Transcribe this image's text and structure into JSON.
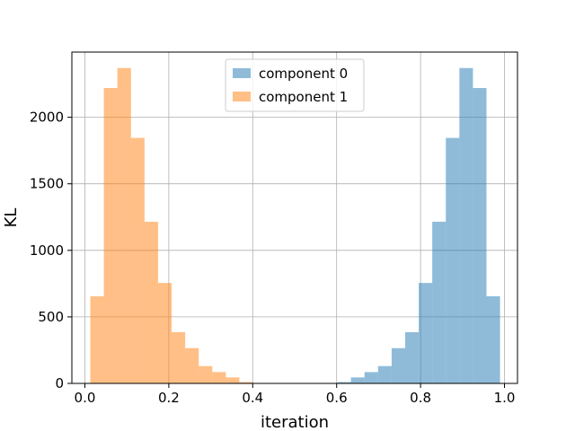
{
  "chart_data": {
    "type": "bar",
    "subtype": "histogram",
    "title": "",
    "xlabel": "iteration",
    "ylabel": "KL",
    "xlim": [
      -0.031,
      1.031
    ],
    "ylim": [
      0,
      2490
    ],
    "xticks": [
      0.0,
      0.2,
      0.4,
      0.6,
      0.8,
      1.0
    ],
    "xtick_labels": [
      "0.0",
      "0.2",
      "0.4",
      "0.6",
      "0.8",
      "1.0"
    ],
    "yticks": [
      0,
      500,
      1000,
      1500,
      2000
    ],
    "ytick_labels": [
      "0",
      "500",
      "1000",
      "1500",
      "2000"
    ],
    "grid": true,
    "legend_position": "top-center",
    "bin_width": 0.0323,
    "series": [
      {
        "name": "component 0",
        "color": "#1f77b4",
        "alpha": 0.5,
        "bin_starts": [
          0.5695,
          0.6018,
          0.6341,
          0.6664,
          0.6987,
          0.731,
          0.7633,
          0.7956,
          0.8279,
          0.8602,
          0.8925,
          0.9248,
          0.9571
        ],
        "values": [
          3,
          10,
          45,
          85,
          130,
          265,
          385,
          755,
          1215,
          1845,
          2370,
          2220,
          655
        ]
      },
      {
        "name": "component 1",
        "color": "#ff7f0e",
        "alpha": 0.5,
        "bin_starts": [
          0.0129,
          0.0452,
          0.0775,
          0.1098,
          0.1421,
          0.1744,
          0.2067,
          0.239,
          0.2713,
          0.3036,
          0.3359,
          0.3682,
          0.4005
        ],
        "values": [
          655,
          2220,
          2370,
          1845,
          1215,
          755,
          385,
          265,
          130,
          85,
          45,
          10,
          3
        ]
      }
    ]
  }
}
